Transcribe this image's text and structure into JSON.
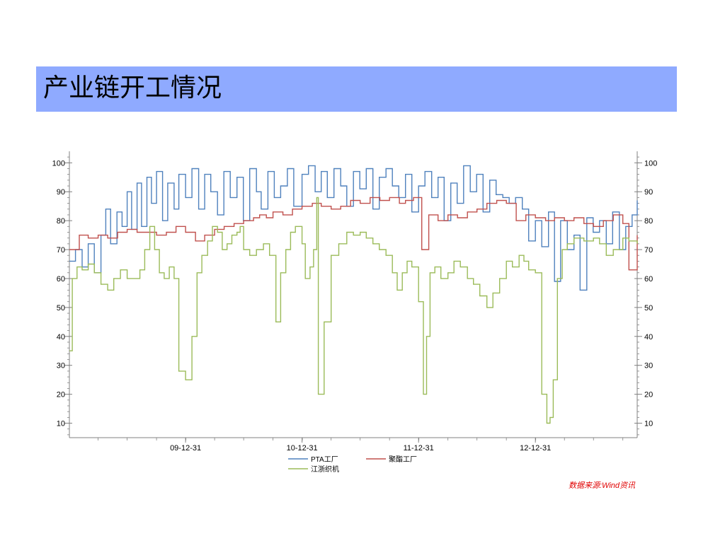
{
  "title": "产业链开工情况",
  "source_note": "数据来源:Wind资讯",
  "colors": {
    "title_bar": "#8faaff",
    "pta": "#4f81bd",
    "polyester": "#c0504d",
    "weaving": "#9bbb59",
    "source_note": "#e00000"
  },
  "chart_data": {
    "type": "line",
    "title": "",
    "xlabel": "",
    "ylabel": "",
    "ylim": [
      5,
      103
    ],
    "xlim": [
      "2009-01-01",
      "2013-11-15"
    ],
    "y_ticks": [
      10,
      20,
      30,
      40,
      50,
      60,
      70,
      80,
      90,
      100
    ],
    "y_tick_labels": [
      "10",
      "20",
      "30",
      "40",
      "50",
      "60",
      "70",
      "80",
      "90",
      "100"
    ],
    "x_ticks": [
      "2009-12-31",
      "2010-12-31",
      "2011-12-31",
      "2012-12-31"
    ],
    "x_tick_labels": [
      "09-12-31",
      "10-12-31",
      "11-12-31",
      "12-12-31"
    ],
    "grid": false,
    "dual_y_axis_same_scale": true,
    "legend_position": "bottom",
    "series": [
      {
        "name": "PTA工厂",
        "x": [
          "2009-01-01",
          "2009-01-20",
          "2009-02-10",
          "2009-03-01",
          "2009-03-20",
          "2009-04-10",
          "2009-04-25",
          "2009-05-10",
          "2009-05-30",
          "2009-06-15",
          "2009-07-01",
          "2009-07-15",
          "2009-08-01",
          "2009-08-15",
          "2009-09-01",
          "2009-09-15",
          "2009-10-01",
          "2009-10-20",
          "2009-11-05",
          "2009-11-25",
          "2009-12-10",
          "2009-12-31",
          "2010-01-20",
          "2010-02-10",
          "2010-03-01",
          "2010-03-20",
          "2010-04-10",
          "2010-04-30",
          "2010-05-20",
          "2010-06-10",
          "2010-06-30",
          "2010-07-20",
          "2010-08-10",
          "2010-08-25",
          "2010-09-15",
          "2010-10-05",
          "2010-10-25",
          "2010-11-15",
          "2010-12-05",
          "2010-12-31",
          "2011-01-20",
          "2011-02-10",
          "2011-03-01",
          "2011-03-20",
          "2011-04-10",
          "2011-05-01",
          "2011-05-20",
          "2011-06-10",
          "2011-06-30",
          "2011-07-20",
          "2011-08-10",
          "2011-08-30",
          "2011-09-20",
          "2011-10-10",
          "2011-10-30",
          "2011-11-20",
          "2011-12-10",
          "2011-12-31",
          "2012-01-20",
          "2012-02-10",
          "2012-03-01",
          "2012-03-20",
          "2012-04-10",
          "2012-04-30",
          "2012-05-20",
          "2012-06-10",
          "2012-06-30",
          "2012-07-20",
          "2012-08-10",
          "2012-08-30",
          "2012-09-20",
          "2012-10-10",
          "2012-10-30",
          "2012-11-20",
          "2012-12-10",
          "2012-12-31",
          "2013-01-20",
          "2013-02-10",
          "2013-03-01",
          "2013-03-20",
          "2013-04-10",
          "2013-05-01",
          "2013-05-20",
          "2013-06-10",
          "2013-06-30",
          "2013-07-20",
          "2013-08-10",
          "2013-08-30",
          "2013-09-20",
          "2013-10-10",
          "2013-10-30",
          "2013-11-15"
        ],
        "values": [
          66,
          70,
          64,
          72,
          62,
          75,
          84,
          72,
          83,
          78,
          90,
          77,
          93,
          78,
          95,
          86,
          97,
          80,
          93,
          84,
          96,
          88,
          98,
          84,
          96,
          90,
          82,
          97,
          88,
          95,
          80,
          98,
          90,
          84,
          97,
          88,
          92,
          98,
          85,
          96,
          99,
          90,
          97,
          88,
          98,
          92,
          85,
          97,
          91,
          98,
          84,
          95,
          98,
          92,
          88,
          96,
          83,
          92,
          97,
          88,
          95,
          80,
          93,
          86,
          99,
          90,
          96,
          83,
          94,
          89,
          88,
          86,
          88,
          84,
          73,
          80,
          71,
          83,
          59,
          80,
          70,
          75,
          56,
          81,
          76,
          80,
          72,
          83,
          70,
          78,
          82,
          87
        ]
      },
      {
        "name": "聚酯工厂",
        "x": [
          "2009-01-01",
          "2009-02-01",
          "2009-03-01",
          "2009-04-01",
          "2009-05-01",
          "2009-06-01",
          "2009-07-01",
          "2009-08-01",
          "2009-09-01",
          "2009-10-01",
          "2009-11-01",
          "2009-12-01",
          "2009-12-31",
          "2010-01-31",
          "2010-03-01",
          "2010-04-01",
          "2010-05-01",
          "2010-06-01",
          "2010-07-01",
          "2010-08-01",
          "2010-08-20",
          "2010-09-10",
          "2010-10-01",
          "2010-11-01",
          "2010-12-01",
          "2010-12-31",
          "2011-02-01",
          "2011-03-01",
          "2011-04-01",
          "2011-05-01",
          "2011-06-01",
          "2011-07-01",
          "2011-08-01",
          "2011-09-01",
          "2011-10-01",
          "2011-11-01",
          "2011-11-20",
          "2011-12-15",
          "2012-01-10",
          "2012-02-01",
          "2012-03-01",
          "2012-04-01",
          "2012-05-01",
          "2012-06-01",
          "2012-07-01",
          "2012-08-01",
          "2012-09-01",
          "2012-10-01",
          "2012-11-01",
          "2012-12-01",
          "2012-12-31",
          "2013-02-01",
          "2013-03-01",
          "2013-04-01",
          "2013-05-01",
          "2013-06-01",
          "2013-07-01",
          "2013-08-01",
          "2013-09-01",
          "2013-10-01",
          "2013-10-20",
          "2013-11-15"
        ],
        "values": [
          70,
          75,
          74,
          75,
          74,
          76,
          77,
          76,
          76,
          75,
          76,
          78,
          76,
          73,
          75,
          77,
          78,
          79,
          80,
          81,
          82,
          81,
          83,
          82,
          84,
          85,
          86,
          85,
          84,
          85,
          87,
          86,
          88,
          87,
          88,
          86,
          87,
          88,
          70,
          82,
          80,
          82,
          81,
          83,
          84,
          86,
          87,
          86,
          80,
          82,
          81,
          80,
          81,
          80,
          81,
          79,
          78,
          80,
          82,
          79,
          63,
          75
        ]
      },
      {
        "name": "江浙织机",
        "x": [
          "2009-01-01",
          "2009-01-10",
          "2009-01-25",
          "2009-02-10",
          "2009-03-01",
          "2009-03-20",
          "2009-04-10",
          "2009-05-01",
          "2009-05-20",
          "2009-06-10",
          "2009-07-01",
          "2009-07-20",
          "2009-08-10",
          "2009-08-25",
          "2009-09-10",
          "2009-09-25",
          "2009-10-10",
          "2009-10-25",
          "2009-11-10",
          "2009-11-25",
          "2009-12-10",
          "2009-12-31",
          "2010-01-20",
          "2010-02-05",
          "2010-02-20",
          "2010-03-10",
          "2010-03-25",
          "2010-04-10",
          "2010-04-25",
          "2010-05-10",
          "2010-05-25",
          "2010-06-10",
          "2010-06-20",
          "2010-07-01",
          "2010-07-20",
          "2010-08-10",
          "2010-09-01",
          "2010-09-20",
          "2010-10-10",
          "2010-10-25",
          "2010-11-10",
          "2010-11-25",
          "2010-12-10",
          "2010-12-31",
          "2011-01-10",
          "2011-01-25",
          "2011-02-05",
          "2011-02-15",
          "2011-02-20",
          "2011-03-10",
          "2011-04-01",
          "2011-04-25",
          "2011-05-20",
          "2011-06-10",
          "2011-07-01",
          "2011-07-20",
          "2011-08-10",
          "2011-08-30",
          "2011-09-20",
          "2011-10-10",
          "2011-10-25",
          "2011-11-10",
          "2011-11-25",
          "2011-12-10",
          "2011-12-31",
          "2012-01-15",
          "2012-01-25",
          "2012-02-05",
          "2012-02-20",
          "2012-03-10",
          "2012-04-01",
          "2012-04-20",
          "2012-05-10",
          "2012-06-01",
          "2012-06-20",
          "2012-07-10",
          "2012-08-01",
          "2012-08-20",
          "2012-09-10",
          "2012-10-01",
          "2012-10-20",
          "2012-11-10",
          "2012-11-25",
          "2012-12-10",
          "2012-12-31",
          "2013-01-20",
          "2013-02-05",
          "2013-02-15",
          "2013-02-25",
          "2013-03-10",
          "2013-03-25",
          "2013-04-10",
          "2013-05-01",
          "2013-06-01",
          "2013-07-01",
          "2013-07-20",
          "2013-08-10",
          "2013-09-01",
          "2013-10-01",
          "2013-10-20",
          "2013-11-15"
        ],
        "values": [
          35,
          60,
          64,
          63,
          65,
          62,
          58,
          56,
          60,
          63,
          60,
          60,
          63,
          70,
          78,
          70,
          62,
          60,
          64,
          60,
          28,
          25,
          40,
          62,
          68,
          73,
          78,
          76,
          70,
          72,
          75,
          76,
          78,
          70,
          68,
          70,
          72,
          68,
          45,
          62,
          70,
          76,
          78,
          72,
          60,
          64,
          70,
          88,
          20,
          45,
          68,
          72,
          76,
          75,
          76,
          74,
          72,
          70,
          68,
          62,
          56,
          62,
          66,
          64,
          52,
          20,
          40,
          62,
          64,
          60,
          62,
          66,
          64,
          60,
          58,
          54,
          50,
          55,
          60,
          66,
          64,
          68,
          66,
          63,
          62,
          20,
          10,
          12,
          25,
          60,
          70,
          72,
          74,
          73,
          74,
          72,
          68,
          70,
          74,
          73,
          72
        ]
      }
    ]
  }
}
